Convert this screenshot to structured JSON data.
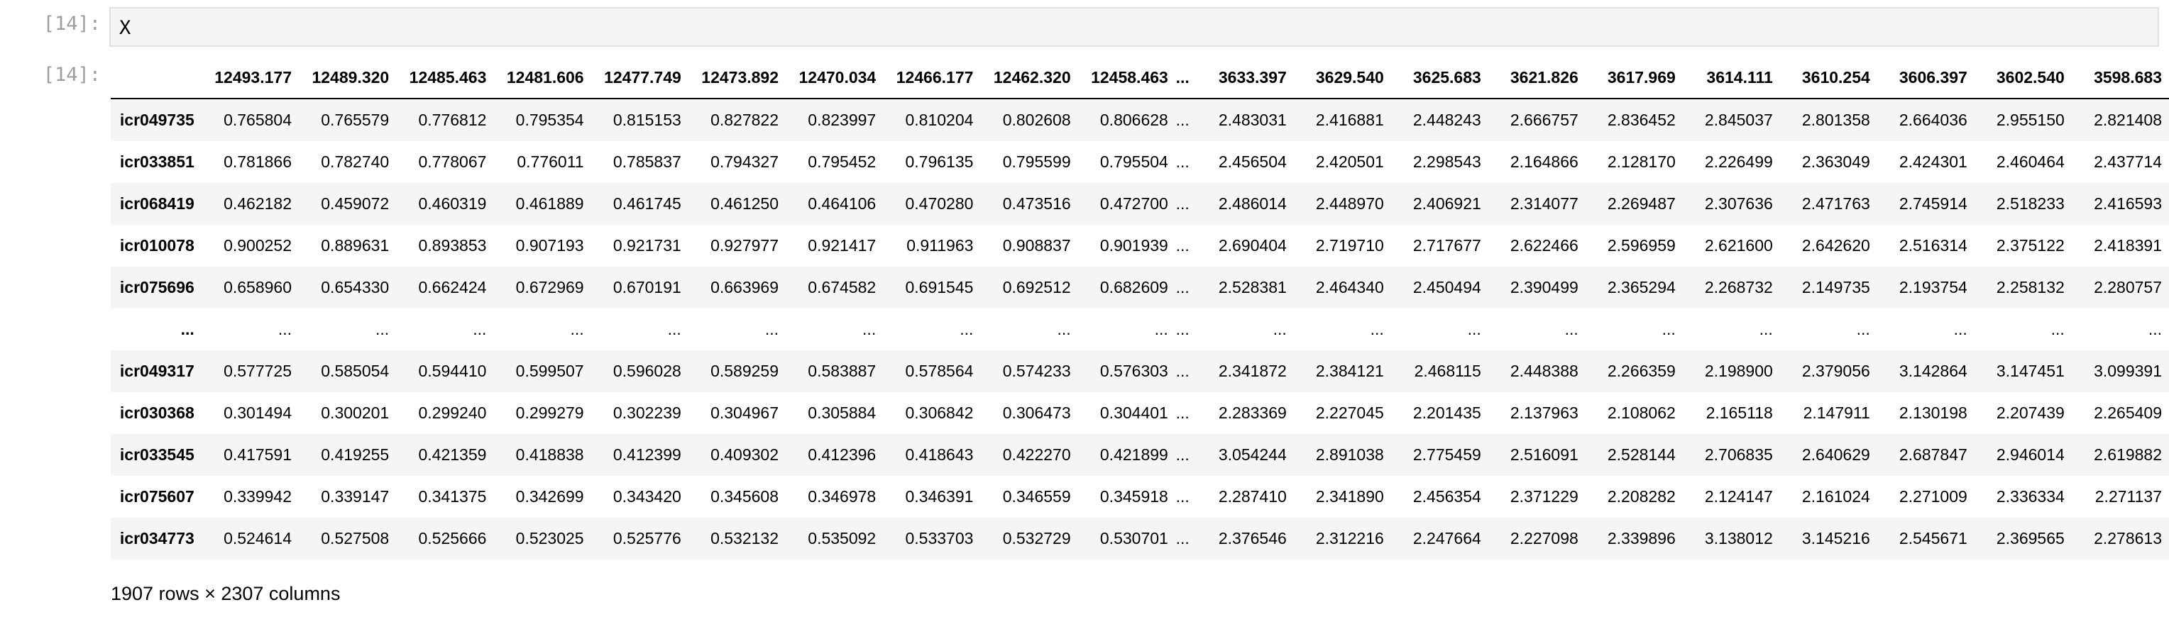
{
  "input_prompt": "[14]:",
  "output_prompt": "[14]:",
  "input_code": "X",
  "table": {
    "index_header": "",
    "columns": [
      "12493.177",
      "12489.320",
      "12485.463",
      "12481.606",
      "12477.749",
      "12473.892",
      "12470.034",
      "12466.177",
      "12462.320",
      "12458.463",
      "...",
      "3633.397",
      "3629.540",
      "3625.683",
      "3621.826",
      "3617.969",
      "3614.111",
      "3610.254",
      "3606.397",
      "3602.540",
      "3598.683"
    ],
    "rows": [
      {
        "index": "icr049735",
        "values": [
          "0.765804",
          "0.765579",
          "0.776812",
          "0.795354",
          "0.815153",
          "0.827822",
          "0.823997",
          "0.810204",
          "0.802608",
          "0.806628",
          "...",
          "2.483031",
          "2.416881",
          "2.448243",
          "2.666757",
          "2.836452",
          "2.845037",
          "2.801358",
          "2.664036",
          "2.955150",
          "2.821408"
        ]
      },
      {
        "index": "icr033851",
        "values": [
          "0.781866",
          "0.782740",
          "0.778067",
          "0.776011",
          "0.785837",
          "0.794327",
          "0.795452",
          "0.796135",
          "0.795599",
          "0.795504",
          "...",
          "2.456504",
          "2.420501",
          "2.298543",
          "2.164866",
          "2.128170",
          "2.226499",
          "2.363049",
          "2.424301",
          "2.460464",
          "2.437714"
        ]
      },
      {
        "index": "icr068419",
        "values": [
          "0.462182",
          "0.459072",
          "0.460319",
          "0.461889",
          "0.461745",
          "0.461250",
          "0.464106",
          "0.470280",
          "0.473516",
          "0.472700",
          "...",
          "2.486014",
          "2.448970",
          "2.406921",
          "2.314077",
          "2.269487",
          "2.307636",
          "2.471763",
          "2.745914",
          "2.518233",
          "2.416593"
        ]
      },
      {
        "index": "icr010078",
        "values": [
          "0.900252",
          "0.889631",
          "0.893853",
          "0.907193",
          "0.921731",
          "0.927977",
          "0.921417",
          "0.911963",
          "0.908837",
          "0.901939",
          "...",
          "2.690404",
          "2.719710",
          "2.717677",
          "2.622466",
          "2.596959",
          "2.621600",
          "2.642620",
          "2.516314",
          "2.375122",
          "2.418391"
        ]
      },
      {
        "index": "icr075696",
        "values": [
          "0.658960",
          "0.654330",
          "0.662424",
          "0.672969",
          "0.670191",
          "0.663969",
          "0.674582",
          "0.691545",
          "0.692512",
          "0.682609",
          "...",
          "2.528381",
          "2.464340",
          "2.450494",
          "2.390499",
          "2.365294",
          "2.268732",
          "2.149735",
          "2.193754",
          "2.258132",
          "2.280757"
        ]
      },
      {
        "index": "...",
        "values": [
          "...",
          "...",
          "...",
          "...",
          "...",
          "...",
          "...",
          "...",
          "...",
          "...",
          "...",
          "...",
          "...",
          "...",
          "...",
          "...",
          "...",
          "...",
          "...",
          "...",
          "..."
        ]
      },
      {
        "index": "icr049317",
        "values": [
          "0.577725",
          "0.585054",
          "0.594410",
          "0.599507",
          "0.596028",
          "0.589259",
          "0.583887",
          "0.578564",
          "0.574233",
          "0.576303",
          "...",
          "2.341872",
          "2.384121",
          "2.468115",
          "2.448388",
          "2.266359",
          "2.198900",
          "2.379056",
          "3.142864",
          "3.147451",
          "3.099391"
        ]
      },
      {
        "index": "icr030368",
        "values": [
          "0.301494",
          "0.300201",
          "0.299240",
          "0.299279",
          "0.302239",
          "0.304967",
          "0.305884",
          "0.306842",
          "0.306473",
          "0.304401",
          "...",
          "2.283369",
          "2.227045",
          "2.201435",
          "2.137963",
          "2.108062",
          "2.165118",
          "2.147911",
          "2.130198",
          "2.207439",
          "2.265409"
        ]
      },
      {
        "index": "icr033545",
        "values": [
          "0.417591",
          "0.419255",
          "0.421359",
          "0.418838",
          "0.412399",
          "0.409302",
          "0.412396",
          "0.418643",
          "0.422270",
          "0.421899",
          "...",
          "3.054244",
          "2.891038",
          "2.775459",
          "2.516091",
          "2.528144",
          "2.706835",
          "2.640629",
          "2.687847",
          "2.946014",
          "2.619882"
        ]
      },
      {
        "index": "icr075607",
        "values": [
          "0.339942",
          "0.339147",
          "0.341375",
          "0.342699",
          "0.343420",
          "0.345608",
          "0.346978",
          "0.346391",
          "0.346559",
          "0.345918",
          "...",
          "2.287410",
          "2.341890",
          "2.456354",
          "2.371229",
          "2.208282",
          "2.124147",
          "2.161024",
          "2.271009",
          "2.336334",
          "2.271137"
        ]
      },
      {
        "index": "icr034773",
        "values": [
          "0.524614",
          "0.527508",
          "0.525666",
          "0.523025",
          "0.525776",
          "0.532132",
          "0.535092",
          "0.533703",
          "0.532729",
          "0.530701",
          "...",
          "2.376546",
          "2.312216",
          "2.247664",
          "2.227098",
          "2.339896",
          "3.138012",
          "3.145216",
          "2.545671",
          "2.369565",
          "2.278613"
        ]
      }
    ]
  },
  "shape_text": "1907 rows × 2307 columns"
}
